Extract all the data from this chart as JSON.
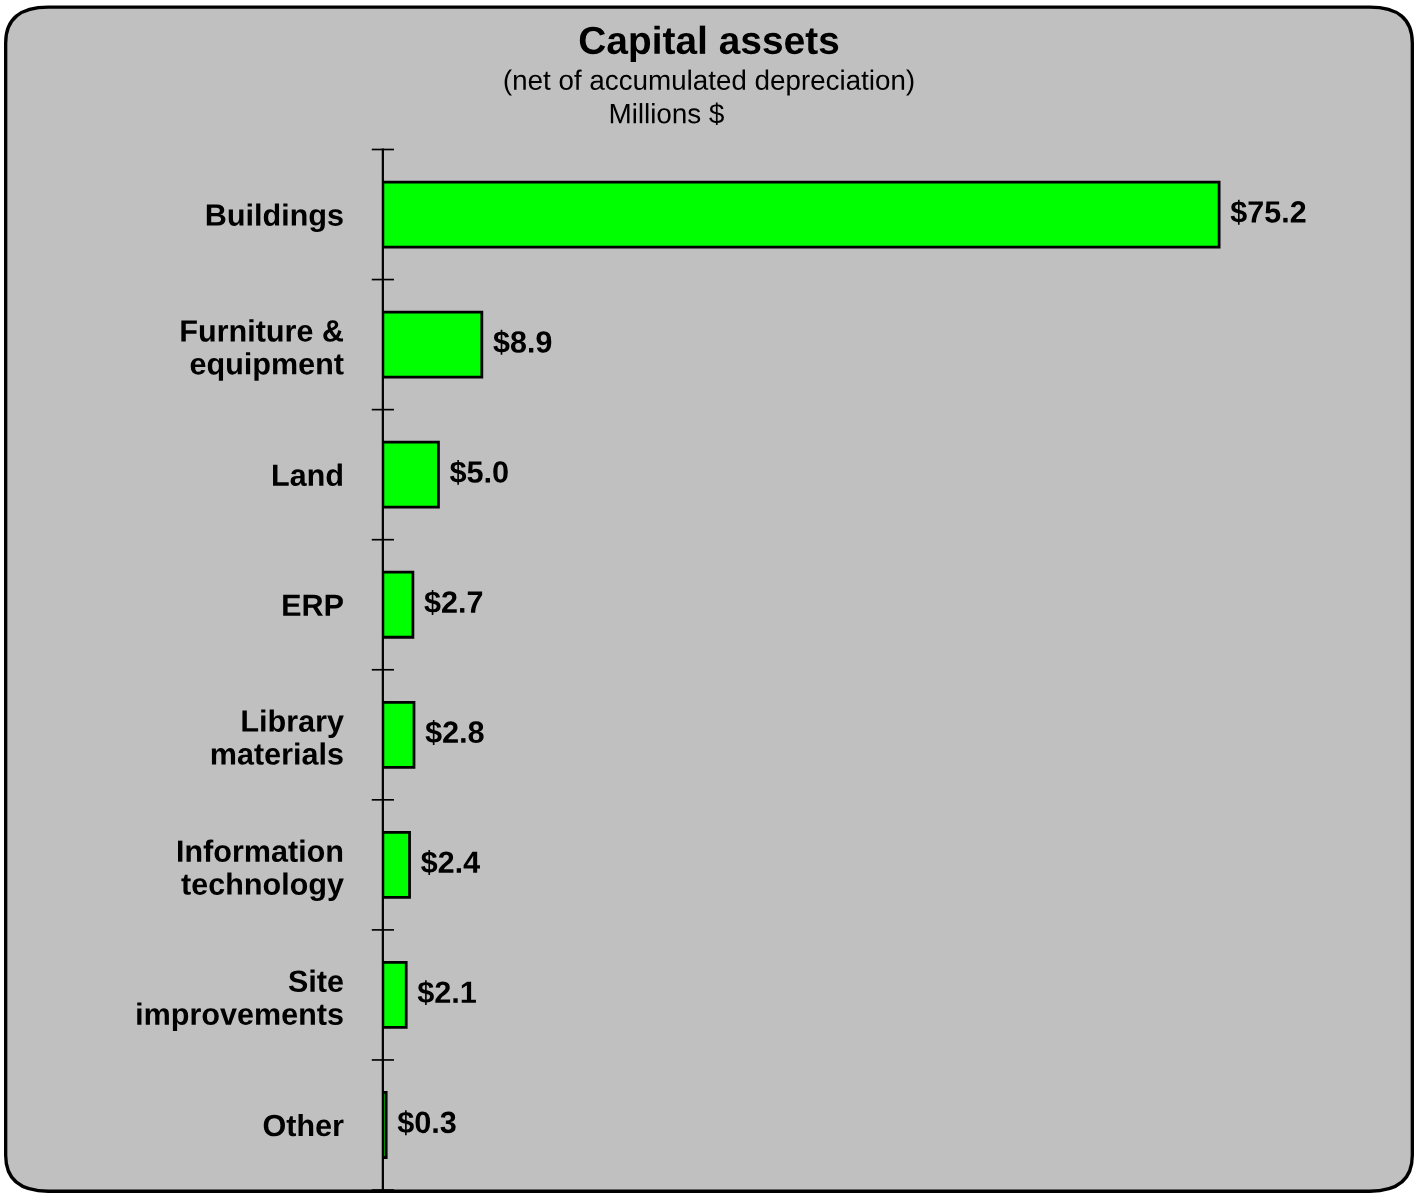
{
  "chart_data": {
    "type": "bar",
    "orientation": "horizontal",
    "title": "Capital assets",
    "subtitle": "(net of accumulated depreciation)",
    "annotations": [
      "Millions $"
    ],
    "categories": [
      "Buildings",
      "Furniture &\nequipment",
      "Land",
      "ERP",
      "Library\nmaterials",
      "Information\ntechnology",
      "Site\nimprovements",
      "Other"
    ],
    "values": [
      75.2,
      8.9,
      5.0,
      2.7,
      2.8,
      2.4,
      2.1,
      0.3
    ],
    "value_labels": [
      "$75.2",
      "$8.9",
      "$5.0",
      "$2.7",
      "$2.8",
      "$2.4",
      "$2.1",
      "$0.3"
    ],
    "color": "#00ff00",
    "grid": false,
    "legend": false
  }
}
